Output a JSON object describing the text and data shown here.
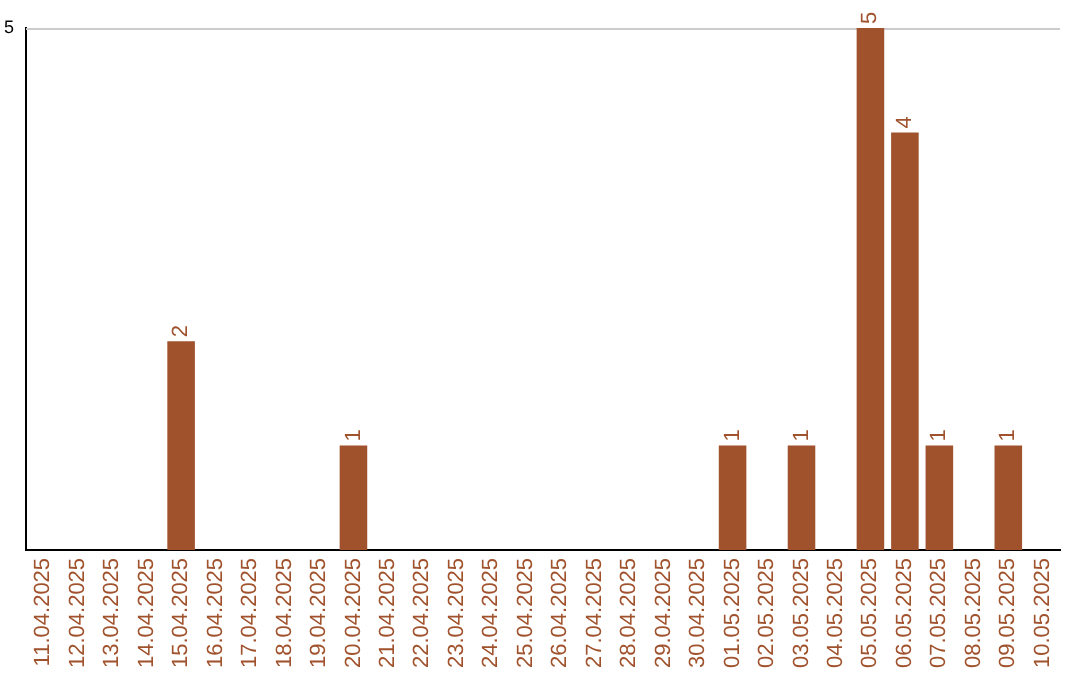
{
  "chart_data": {
    "type": "bar",
    "categories": [
      "11.04.2025",
      "12.04.2025",
      "13.04.2025",
      "14.04.2025",
      "15.04.2025",
      "16.04.2025",
      "17.04.2025",
      "18.04.2025",
      "19.04.2025",
      "20.04.2025",
      "21.04.2025",
      "22.04.2025",
      "23.04.2025",
      "24.04.2025",
      "25.04.2025",
      "26.04.2025",
      "27.04.2025",
      "28.04.2025",
      "29.04.2025",
      "30.04.2025",
      "01.05.2025",
      "02.05.2025",
      "03.05.2025",
      "04.05.2025",
      "05.05.2025",
      "06.05.2025",
      "07.05.2025",
      "08.05.2025",
      "09.05.2025",
      "10.05.2025"
    ],
    "values": [
      0,
      0,
      0,
      0,
      2,
      0,
      0,
      0,
      0,
      1,
      0,
      0,
      0,
      0,
      0,
      0,
      0,
      0,
      0,
      0,
      1,
      0,
      1,
      0,
      5,
      4,
      1,
      0,
      1,
      0
    ],
    "value_labels": [
      null,
      null,
      null,
      null,
      "2",
      null,
      null,
      null,
      null,
      "1",
      null,
      null,
      null,
      null,
      null,
      null,
      null,
      null,
      null,
      null,
      "1",
      null,
      "1",
      null,
      "5",
      "4",
      "1",
      null,
      "1",
      null
    ],
    "color": "#a0522d",
    "ylim": [
      0,
      5
    ],
    "yticks": [
      5
    ],
    "legend": false
  }
}
